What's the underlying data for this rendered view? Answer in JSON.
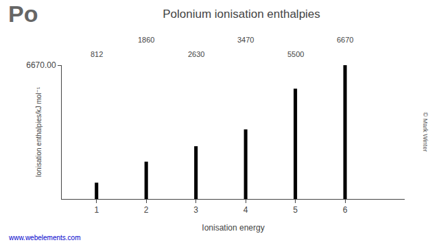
{
  "chart_data": {
    "type": "bar",
    "title": "Polonium ionisation enthalpies",
    "xlabel": "Ionisation energy",
    "ylabel": "Ionisation enthalpies/kJ mol⁻¹",
    "x": [
      1,
      2,
      3,
      4,
      5,
      6
    ],
    "values": [
      812,
      1860,
      2630,
      3470,
      5500,
      6670
    ],
    "color": "#000000",
    "xlim": [
      0.3,
      7.2
    ],
    "xticks": [
      1,
      2,
      3,
      4,
      5,
      6
    ],
    "ylim": [
      0,
      6670
    ],
    "yticks": [
      {
        "value": 6670,
        "label": "6670.00"
      }
    ],
    "grid": false,
    "data_labels": true,
    "annotations": [
      "Po",
      "www.webelements.com",
      "© Mark Winter"
    ]
  }
}
